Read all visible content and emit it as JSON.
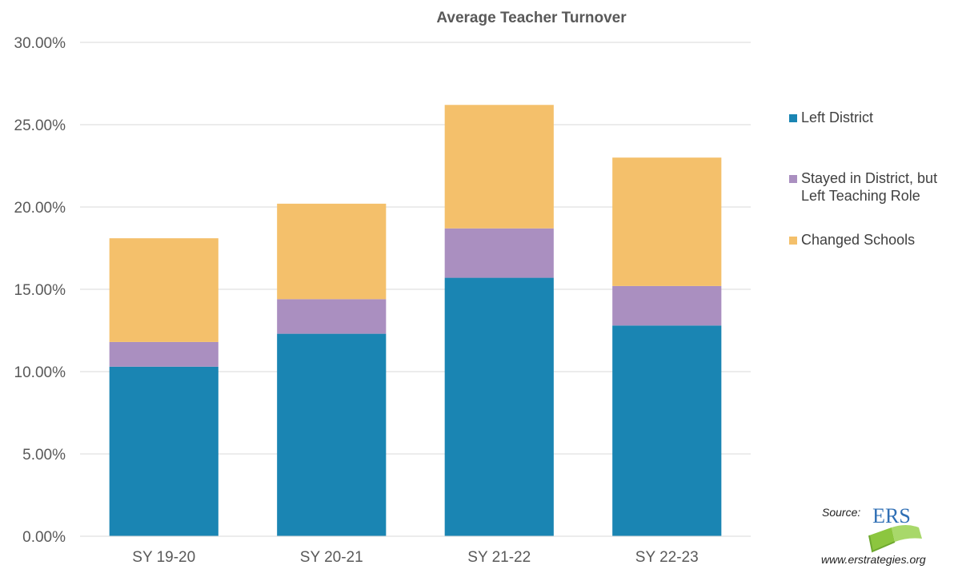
{
  "chart_data": {
    "type": "bar",
    "stacked": true,
    "title": "Average Teacher Turnover",
    "xlabel": "",
    "ylabel": "",
    "categories": [
      "SY 19-20",
      "SY 20-21",
      "SY 21-22",
      "SY 22-23"
    ],
    "series": [
      {
        "name": "Left District",
        "color": "#1a85b3",
        "values": [
          10.3,
          12.3,
          15.7,
          12.8
        ]
      },
      {
        "name": "Stayed in District, but Left Teaching Role",
        "color": "#aa8fc0",
        "values": [
          1.5,
          2.1,
          3.0,
          2.4
        ]
      },
      {
        "name": "Changed Schools",
        "color": "#f4c06b",
        "values": [
          6.3,
          5.8,
          7.5,
          7.8
        ]
      }
    ],
    "ylim": [
      0,
      30
    ],
    "yticks": [
      "0.00%",
      "5.00%",
      "10.00%",
      "15.00%",
      "20.00%",
      "25.00%",
      "30.00%"
    ],
    "grid": true,
    "legend_position": "right"
  },
  "legend": {
    "left_district": "Left District",
    "stayed_line1": "Stayed in District, but",
    "stayed_line2": "Left Teaching Role",
    "changed_schools": "Changed Schools"
  },
  "source": {
    "label": "Source:",
    "logo_text": "ERS",
    "url": "www.erstrategies.org"
  },
  "colors": {
    "left_district": "#1a85b3",
    "stayed": "#aa8fc0",
    "changed": "#f4c06b",
    "grid": "#d9d9d9",
    "logo_blue": "#2f6fb5",
    "logo_green": "#8cc63f"
  }
}
